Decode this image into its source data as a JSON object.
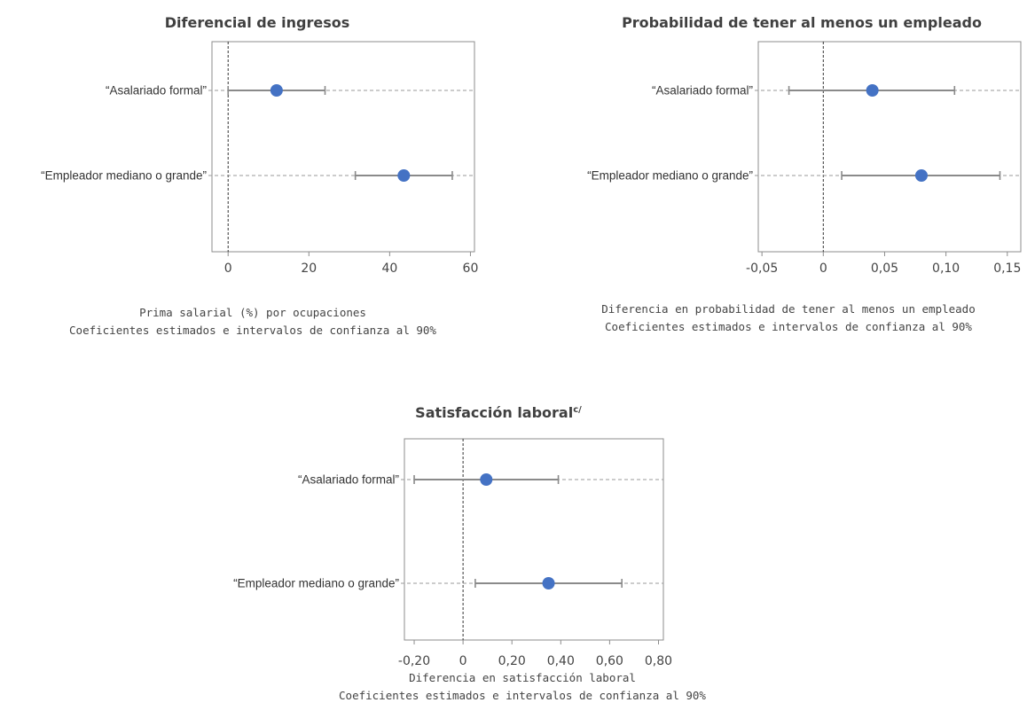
{
  "chart_data": [
    {
      "type": "dot-and-whisker",
      "title": "Diferencial de ingresos",
      "title_sup": "",
      "categories": [
        "“Asalariado formal”",
        "“Empleador mediano o grande”"
      ],
      "estimates": [
        12,
        43.5
      ],
      "ci_low": [
        0,
        31.5
      ],
      "ci_high": [
        24,
        55.5
      ],
      "xlim": [
        -4,
        61
      ],
      "xticks": [
        0,
        20,
        40,
        60
      ],
      "xtick_labels": [
        "0",
        "20",
        "40",
        "60"
      ],
      "notes": [
        "Prima salarial (%) por ocupaciones",
        "Coeficientes estimados e intervalos de confianza al 90%"
      ]
    },
    {
      "type": "dot-and-whisker",
      "title": "Probabilidad de tener al menos un empleado",
      "title_sup": "",
      "categories": [
        "“Asalariado formal”",
        "“Empleador mediano o grande”"
      ],
      "estimates": [
        0.04,
        0.08
      ],
      "ci_low": [
        -0.028,
        0.015
      ],
      "ci_high": [
        0.107,
        0.144
      ],
      "xlim": [
        -0.053,
        0.161
      ],
      "xticks": [
        -0.05,
        0,
        0.05,
        0.1,
        0.15
      ],
      "xtick_labels": [
        "-0,05",
        "0",
        "0,05",
        "0,10",
        "0,15"
      ],
      "notes": [
        "Diferencia en probabilidad de tener al menos un empleado",
        "Coeficientes estimados e intervalos de confianza al 90%"
      ]
    },
    {
      "type": "dot-and-whisker",
      "title": "Satisfacción laboral",
      "title_sup": "c/",
      "categories": [
        "“Asalariado formal”",
        "“Empleador mediano o grande”"
      ],
      "estimates": [
        0.095,
        0.35
      ],
      "ci_low": [
        -0.2,
        0.05
      ],
      "ci_high": [
        0.39,
        0.65
      ],
      "xlim": [
        -0.24,
        0.82
      ],
      "xticks": [
        -0.2,
        0,
        0.2,
        0.4,
        0.6,
        0.8
      ],
      "xtick_labels": [
        "-0,20",
        "0",
        "0,20",
        "0,40",
        "0,60",
        "0,80"
      ],
      "notes": [
        "Diferencia en satisfacción laboral",
        "Coeficientes estimados e intervalos de confianza al 90%"
      ]
    }
  ],
  "colors": {
    "point": "#4472c4",
    "interval": "#8a8a8a",
    "frame": "#8c8c8c"
  }
}
